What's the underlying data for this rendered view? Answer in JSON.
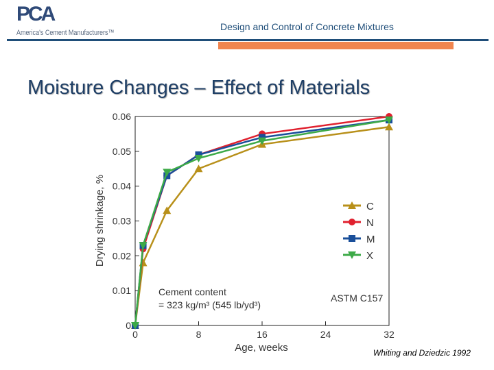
{
  "header": {
    "logo_text": "PCA",
    "logo_tagline": "America's Cement Manufacturers™",
    "title": "Design and Control of Concrete Mixtures",
    "accent_blue": "#1f4e79",
    "accent_orange": "#f0854f"
  },
  "slide": {
    "title": "Moisture Changes – Effect of Materials",
    "citation": "Whiting and Dziedzic 1992"
  },
  "chart_data": {
    "type": "line",
    "xlabel": "Age, weeks",
    "ylabel": "Drying shrinkage, %",
    "xlim": [
      0,
      32
    ],
    "ylim": [
      0,
      0.06
    ],
    "xticks": [
      "0",
      "8",
      "16",
      "24",
      "32"
    ],
    "yticks": [
      "0",
      "0.01",
      "0.02",
      "0.03",
      "0.04",
      "0.05",
      "0.06"
    ],
    "grid": false,
    "legend": "right",
    "x": [
      0,
      1,
      4,
      8,
      16,
      32
    ],
    "series": [
      {
        "name": "C",
        "color": "#b8901a",
        "marker": "triangle-up",
        "values": [
          0,
          0.018,
          0.033,
          0.045,
          0.052,
          0.057
        ]
      },
      {
        "name": "N",
        "color": "#e0202e",
        "marker": "circle",
        "values": [
          0,
          0.022,
          0.043,
          0.049,
          0.055,
          0.06
        ]
      },
      {
        "name": "M",
        "color": "#1a4f9a",
        "marker": "square",
        "values": [
          0,
          0.023,
          0.043,
          0.049,
          0.054,
          0.059
        ]
      },
      {
        "name": "X",
        "color": "#3daa48",
        "marker": "triangle-down",
        "values": [
          0,
          0.023,
          0.044,
          0.048,
          0.053,
          0.059
        ]
      }
    ],
    "annotations": {
      "cement_line1": "Cement content",
      "cement_line2": "= 323 kg/m³  (545 lb/yd³)",
      "standard": "ASTM C157"
    }
  }
}
